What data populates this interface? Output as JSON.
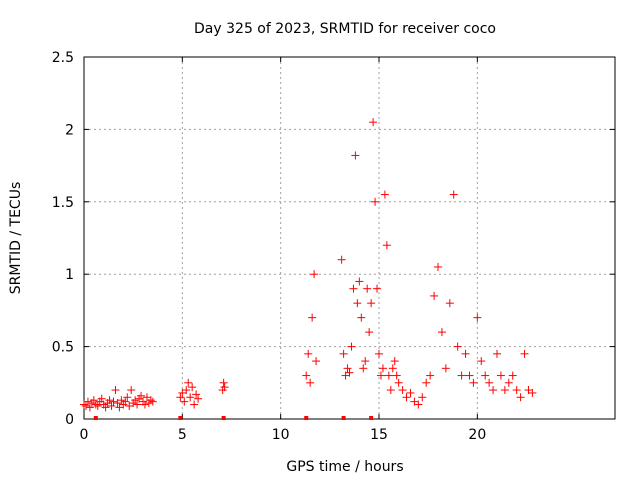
{
  "chart_data": {
    "type": "scatter",
    "title": "Day 325 of 2023, SRMTID for receiver coco",
    "xlabel": "GPS time / hours",
    "ylabel": "SRMTID / TECUs",
    "xlim": [
      0,
      27
    ],
    "ylim": [
      0,
      2.5
    ],
    "x_ticks": [
      "0",
      "5",
      "10",
      "15",
      "20"
    ],
    "x_tick_values": [
      0,
      5,
      10,
      15,
      20
    ],
    "y_ticks": [
      "0",
      "0.5",
      "1",
      "1.5",
      "2",
      "2.5"
    ],
    "y_tick_values": [
      0,
      0.5,
      1,
      1.5,
      2,
      2.5
    ],
    "grid": true,
    "marker": "+",
    "series_color": "#ff0000",
    "zero_markers_x": [
      0.6,
      4.9,
      7.1,
      11.3,
      13.2,
      14.6
    ],
    "series": [
      {
        "name": "SRMTID",
        "segments": [
          {
            "x": [
              0.0,
              0.1,
              0.2,
              0.3,
              0.4,
              0.5,
              0.6,
              0.7,
              0.8,
              0.9,
              1.0,
              1.1,
              1.2,
              1.3,
              1.4,
              1.5,
              1.6,
              1.7,
              1.8,
              1.9,
              2.0,
              2.1,
              2.2,
              2.3,
              2.4,
              2.5,
              2.6,
              2.7,
              2.8,
              2.9,
              3.0,
              3.1,
              3.2,
              3.3,
              3.4,
              3.5
            ],
            "y": [
              0.1,
              0.09,
              0.12,
              0.08,
              0.11,
              0.13,
              0.1,
              0.09,
              0.12,
              0.14,
              0.1,
              0.08,
              0.11,
              0.13,
              0.09,
              0.12,
              0.2,
              0.11,
              0.08,
              0.13,
              0.1,
              0.12,
              0.15,
              0.09,
              0.2,
              0.11,
              0.13,
              0.1,
              0.14,
              0.16,
              0.12,
              0.1,
              0.15,
              0.11,
              0.13,
              0.12
            ]
          },
          {
            "x": [
              4.9,
              5.0,
              5.1,
              5.2,
              5.3,
              5.4,
              5.5,
              5.6,
              5.7,
              5.8
            ],
            "y": [
              0.15,
              0.18,
              0.12,
              0.2,
              0.25,
              0.15,
              0.22,
              0.1,
              0.17,
              0.14
            ]
          },
          {
            "x": [
              7.05,
              7.1,
              7.15
            ],
            "y": [
              0.2,
              0.25,
              0.22
            ]
          },
          {
            "x": [
              11.3,
              11.4,
              11.5,
              11.6,
              11.7,
              11.8
            ],
            "y": [
              0.3,
              0.45,
              0.25,
              0.7,
              1.0,
              0.4
            ]
          },
          {
            "x": [
              13.1,
              13.2,
              13.3,
              13.4,
              13.5,
              13.6,
              13.7,
              13.8,
              13.9,
              14.0,
              14.1,
              14.2,
              14.3,
              14.4,
              14.5,
              14.6,
              14.7,
              14.8,
              14.9,
              15.0,
              15.1,
              15.2,
              15.3,
              15.4,
              15.5,
              15.6,
              15.7,
              15.8,
              15.9,
              16.0
            ],
            "y": [
              1.1,
              0.45,
              0.3,
              0.35,
              0.32,
              0.5,
              0.9,
              1.82,
              0.8,
              0.95,
              0.7,
              0.35,
              0.4,
              0.9,
              0.6,
              0.8,
              2.05,
              1.5,
              0.9,
              0.45,
              0.3,
              0.35,
              1.55,
              1.2,
              0.3,
              0.2,
              0.35,
              0.4,
              0.3,
              0.25
            ]
          },
          {
            "x": [
              16.2,
              16.4,
              16.6,
              16.8,
              17.0,
              17.2,
              17.4,
              17.6,
              17.8,
              18.0,
              18.2,
              18.4,
              18.6,
              18.8,
              19.0,
              19.2,
              19.4,
              19.6,
              19.8,
              20.0,
              20.2,
              20.4,
              20.6,
              20.8,
              21.0,
              21.2,
              21.4,
              21.6,
              21.8,
              22.0,
              22.2,
              22.4,
              22.6,
              22.8
            ],
            "y": [
              0.2,
              0.15,
              0.18,
              0.12,
              0.1,
              0.15,
              0.25,
              0.3,
              0.85,
              1.05,
              0.6,
              0.35,
              0.8,
              1.55,
              0.5,
              0.3,
              0.45,
              0.3,
              0.25,
              0.7,
              0.4,
              0.3,
              0.25,
              0.2,
              0.45,
              0.3,
              0.2,
              0.25,
              0.3,
              0.2,
              0.15,
              0.45,
              0.2,
              0.18
            ]
          }
        ]
      }
    ]
  }
}
